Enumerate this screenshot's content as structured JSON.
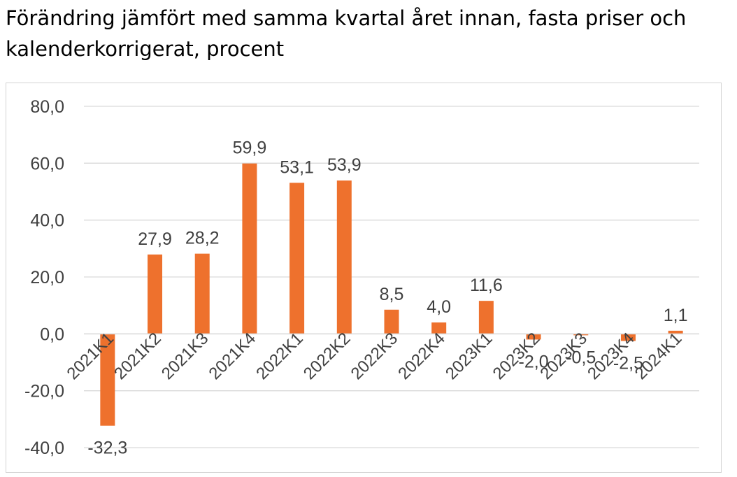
{
  "title": "Förändring jämfört med samma kvartal året innan, fasta priser och kalenderkorrigerat, procent",
  "colors": {
    "bar": "#ee712d",
    "grid": "#d9d9d9",
    "text": "#404040",
    "frame": "#d4d4d4"
  },
  "chart_data": {
    "type": "bar",
    "title": "Förändring jämfört med samma kvartal året innan, fasta priser och kalenderkorrigerat, procent",
    "xlabel": "",
    "ylabel": "",
    "categories": [
      "2021K1",
      "2021K2",
      "2021K3",
      "2021K4",
      "2022K1",
      "2022K2",
      "2022K3",
      "2022K4",
      "2023K1",
      "2023K2",
      "2023K3",
      "2023K4",
      "2024K1"
    ],
    "values": [
      -32.3,
      27.9,
      28.2,
      59.9,
      53.1,
      53.9,
      8.5,
      4.0,
      11.6,
      -2.0,
      -0.5,
      -2.5,
      1.1
    ],
    "value_labels": [
      "-32,3",
      "27,9",
      "28,2",
      "59,9",
      "53,1",
      "53,9",
      "8,5",
      "4,0",
      "11,6",
      "-2,0",
      "-0,5",
      "-2,5",
      "1,1"
    ],
    "ylim": [
      -40,
      80
    ],
    "yticks": [
      80,
      60,
      40,
      20,
      0,
      -20,
      -40
    ],
    "ytick_labels": [
      "80,0",
      "60,0",
      "40,0",
      "20,0",
      "0,0",
      "-20,0",
      "-40,0"
    ],
    "grid": true,
    "legend": "none"
  }
}
